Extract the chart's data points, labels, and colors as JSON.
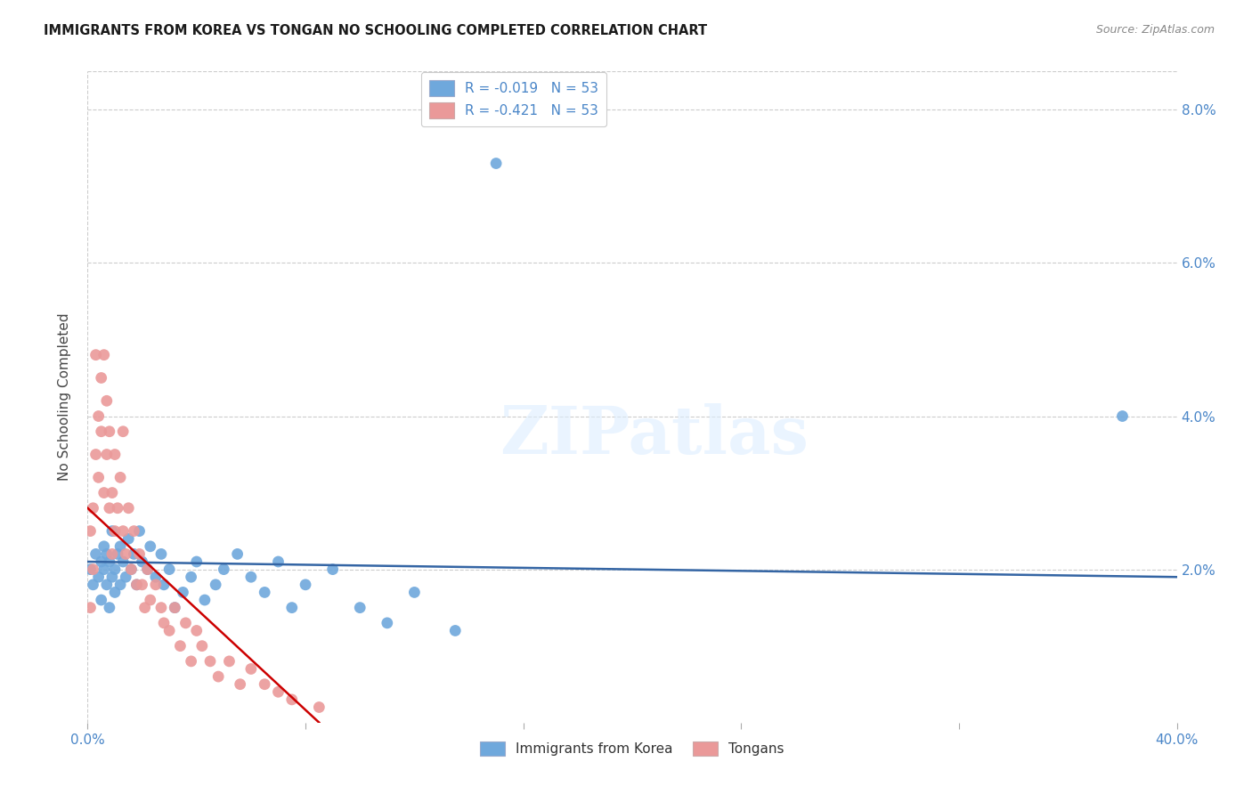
{
  "title": "IMMIGRANTS FROM KOREA VS TONGAN NO SCHOOLING COMPLETED CORRELATION CHART",
  "source": "Source: ZipAtlas.com",
  "ylabel": "No Schooling Completed",
  "xmin": 0.0,
  "xmax": 0.4,
  "ymin": 0.0,
  "ymax": 0.085,
  "ytick_positions": [
    0.0,
    0.02,
    0.04,
    0.06,
    0.08
  ],
  "ytick_labels": [
    "",
    "2.0%",
    "4.0%",
    "6.0%",
    "8.0%"
  ],
  "xtick_positions": [
    0.0,
    0.08,
    0.16,
    0.24,
    0.32,
    0.4
  ],
  "xtick_labels": [
    "0.0%",
    "",
    "",
    "",
    "",
    "40.0%"
  ],
  "legend_r_korea": "-0.019",
  "legend_n_korea": "53",
  "legend_r_tongan": "-0.421",
  "legend_n_tongan": "53",
  "color_korea": "#6fa8dc",
  "color_tongan": "#ea9999",
  "color_korea_line": "#3465a4",
  "color_tongan_line": "#cc0000",
  "watermark": "ZIPatlas",
  "korea_x": [
    0.001,
    0.002,
    0.003,
    0.004,
    0.005,
    0.005,
    0.006,
    0.006,
    0.007,
    0.007,
    0.008,
    0.008,
    0.009,
    0.009,
    0.01,
    0.01,
    0.011,
    0.012,
    0.012,
    0.013,
    0.014,
    0.015,
    0.016,
    0.017,
    0.018,
    0.019,
    0.02,
    0.022,
    0.023,
    0.025,
    0.027,
    0.028,
    0.03,
    0.032,
    0.035,
    0.038,
    0.04,
    0.043,
    0.047,
    0.05,
    0.055,
    0.06,
    0.065,
    0.07,
    0.075,
    0.08,
    0.09,
    0.1,
    0.11,
    0.12,
    0.135,
    0.15,
    0.38
  ],
  "korea_y": [
    0.02,
    0.018,
    0.022,
    0.019,
    0.021,
    0.016,
    0.02,
    0.023,
    0.018,
    0.022,
    0.015,
    0.021,
    0.019,
    0.025,
    0.02,
    0.017,
    0.022,
    0.018,
    0.023,
    0.021,
    0.019,
    0.024,
    0.02,
    0.022,
    0.018,
    0.025,
    0.021,
    0.02,
    0.023,
    0.019,
    0.022,
    0.018,
    0.02,
    0.015,
    0.017,
    0.019,
    0.021,
    0.016,
    0.018,
    0.02,
    0.022,
    0.019,
    0.017,
    0.021,
    0.015,
    0.018,
    0.02,
    0.015,
    0.013,
    0.017,
    0.012,
    0.073,
    0.04
  ],
  "tongan_x": [
    0.001,
    0.001,
    0.002,
    0.002,
    0.003,
    0.003,
    0.004,
    0.004,
    0.005,
    0.005,
    0.006,
    0.006,
    0.007,
    0.007,
    0.008,
    0.008,
    0.009,
    0.009,
    0.01,
    0.01,
    0.011,
    0.012,
    0.013,
    0.013,
    0.014,
    0.015,
    0.016,
    0.017,
    0.018,
    0.019,
    0.02,
    0.021,
    0.022,
    0.023,
    0.025,
    0.027,
    0.028,
    0.03,
    0.032,
    0.034,
    0.036,
    0.038,
    0.04,
    0.042,
    0.045,
    0.048,
    0.052,
    0.056,
    0.06,
    0.065,
    0.07,
    0.075,
    0.085
  ],
  "tongan_y": [
    0.025,
    0.015,
    0.028,
    0.02,
    0.048,
    0.035,
    0.04,
    0.032,
    0.038,
    0.045,
    0.03,
    0.048,
    0.035,
    0.042,
    0.028,
    0.038,
    0.03,
    0.022,
    0.025,
    0.035,
    0.028,
    0.032,
    0.025,
    0.038,
    0.022,
    0.028,
    0.02,
    0.025,
    0.018,
    0.022,
    0.018,
    0.015,
    0.02,
    0.016,
    0.018,
    0.015,
    0.013,
    0.012,
    0.015,
    0.01,
    0.013,
    0.008,
    0.012,
    0.01,
    0.008,
    0.006,
    0.008,
    0.005,
    0.007,
    0.005,
    0.004,
    0.003,
    0.002
  ],
  "korea_line_x": [
    0.0,
    0.4
  ],
  "korea_line_y": [
    0.021,
    0.019
  ],
  "tongan_line_x": [
    0.0,
    0.085
  ],
  "tongan_line_y": [
    0.028,
    0.0
  ]
}
